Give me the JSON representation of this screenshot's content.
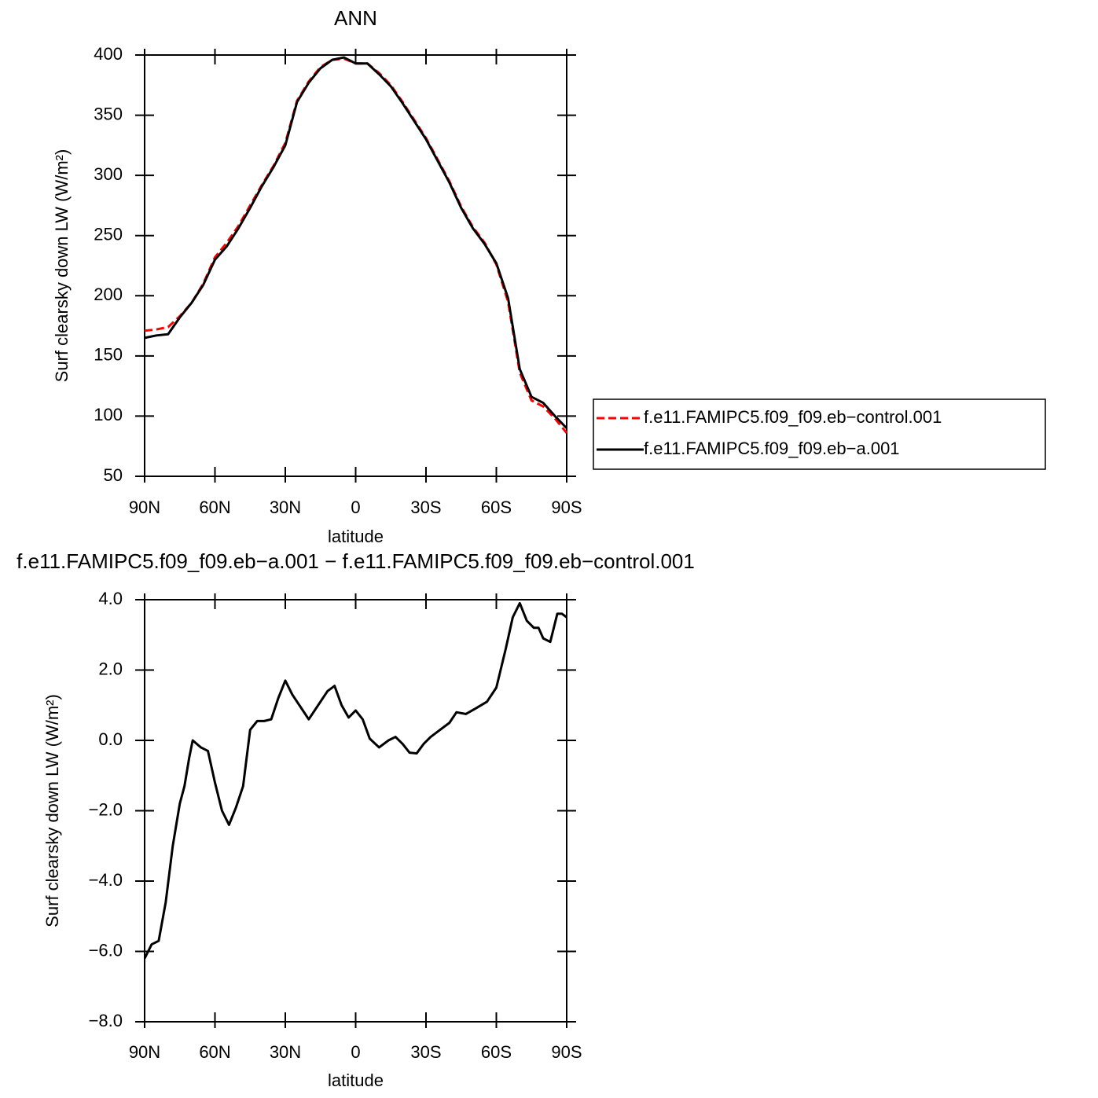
{
  "chart_data": [
    {
      "type": "line",
      "title": "ANN",
      "xlabel": "latitude",
      "ylabel": "Surf clearsky down LW (W/m²)",
      "x": [
        90,
        85,
        80,
        75,
        70,
        65,
        60,
        55,
        50,
        45,
        40,
        35,
        30,
        25,
        20,
        15,
        10,
        5,
        0,
        -5,
        -10,
        -15,
        -20,
        -25,
        -30,
        -35,
        -40,
        -45,
        -50,
        -55,
        -60,
        -65,
        -70,
        -75,
        -80,
        -85,
        -90
      ],
      "xlim": [
        90,
        -90
      ],
      "xticks": [
        {
          "value": 90,
          "label": "90N"
        },
        {
          "value": 60,
          "label": "60N"
        },
        {
          "value": 30,
          "label": "30N"
        },
        0,
        {
          "value": -30,
          "label": "30S"
        },
        {
          "value": -60,
          "label": "60S"
        },
        {
          "value": -90,
          "label": "90S"
        }
      ],
      "ylim": [
        50,
        400
      ],
      "yticks": [
        50,
        100,
        150,
        200,
        250,
        300,
        350,
        400
      ],
      "legend": "right",
      "series": [
        {
          "name": "f.e11.FAMIPC5.f09_f09.eb−control.001",
          "color": "#ff0000",
          "dashed": true,
          "values": [
            171,
            172,
            174,
            183,
            194,
            210,
            232,
            244,
            258,
            275,
            292,
            308,
            327,
            362,
            378,
            390,
            396,
            397,
            393,
            393,
            385,
            375,
            361,
            346,
            331,
            313,
            295,
            274,
            257,
            244,
            226,
            195,
            136,
            113,
            108,
            98,
            86
          ]
        },
        {
          "name": "f.e11.FAMIPC5.f09_f09.eb−a.001",
          "color": "#000000",
          "dashed": false,
          "values": [
            165,
            167,
            168,
            182,
            194,
            209,
            230,
            241,
            256,
            273,
            291,
            307,
            325,
            361,
            377,
            389,
            396,
            398,
            393,
            393,
            384,
            374,
            360,
            345,
            330,
            312,
            294,
            273,
            256,
            243,
            227,
            198,
            139,
            116,
            111,
            100,
            90
          ]
        }
      ]
    },
    {
      "type": "line",
      "title": "f.e11.FAMIPC5.f09_f09.eb−a.001 − f.e11.FAMIPC5.f09_f09.eb−control.001",
      "xlabel": "latitude",
      "ylabel": "Surf clearsky down LW (W/m²)",
      "x": [
        90,
        87,
        84,
        81,
        78,
        75,
        73,
        71,
        69.5,
        66,
        63,
        60,
        57,
        54,
        51,
        48,
        45,
        42,
        39,
        36,
        33,
        30,
        27,
        24,
        20,
        16,
        12,
        9,
        6,
        3,
        0,
        -3,
        -6,
        -10,
        -14,
        -17,
        -20,
        -23,
        -26,
        -29,
        -32,
        -36,
        -40,
        -43,
        -47,
        -51,
        -56,
        -60,
        -64,
        -67,
        -70,
        -73,
        -76,
        -78,
        -80,
        -83,
        -86,
        -88,
        -90
      ],
      "xlim": [
        90,
        -90
      ],
      "xticks": [
        {
          "value": 90,
          "label": "90N"
        },
        {
          "value": 60,
          "label": "60N"
        },
        {
          "value": 30,
          "label": "30N"
        },
        0,
        {
          "value": -30,
          "label": "30S"
        },
        {
          "value": -60,
          "label": "60S"
        },
        {
          "value": -90,
          "label": "90S"
        }
      ],
      "ylim": [
        -8,
        4
      ],
      "yticks": [
        {
          "value": -8,
          "label": "−8.0"
        },
        {
          "value": -6,
          "label": "−6.0"
        },
        {
          "value": -4,
          "label": "−4.0"
        },
        {
          "value": -2,
          "label": "−2.0"
        },
        {
          "value": 0,
          "label": "0.0"
        },
        {
          "value": 2,
          "label": "2.0"
        },
        {
          "value": 4,
          "label": "4.0"
        }
      ],
      "color": "#000000",
      "values": [
        -6.2,
        -5.8,
        -5.7,
        -4.6,
        -3.0,
        -1.8,
        -1.3,
        -0.5,
        0.0,
        -0.2,
        -0.3,
        -1.2,
        -2.0,
        -2.4,
        -1.9,
        -1.3,
        0.3,
        0.55,
        0.55,
        0.6,
        1.2,
        1.7,
        1.3,
        1.0,
        0.6,
        1.0,
        1.4,
        1.55,
        1.0,
        0.65,
        0.85,
        0.6,
        0.05,
        -0.2,
        0.0,
        0.1,
        -0.1,
        -0.35,
        -0.37,
        -0.1,
        0.1,
        0.3,
        0.5,
        0.8,
        0.75,
        0.9,
        1.1,
        1.5,
        2.6,
        3.5,
        3.9,
        3.4,
        3.2,
        3.2,
        2.9,
        2.8,
        3.6,
        3.6,
        3.5
      ]
    }
  ]
}
